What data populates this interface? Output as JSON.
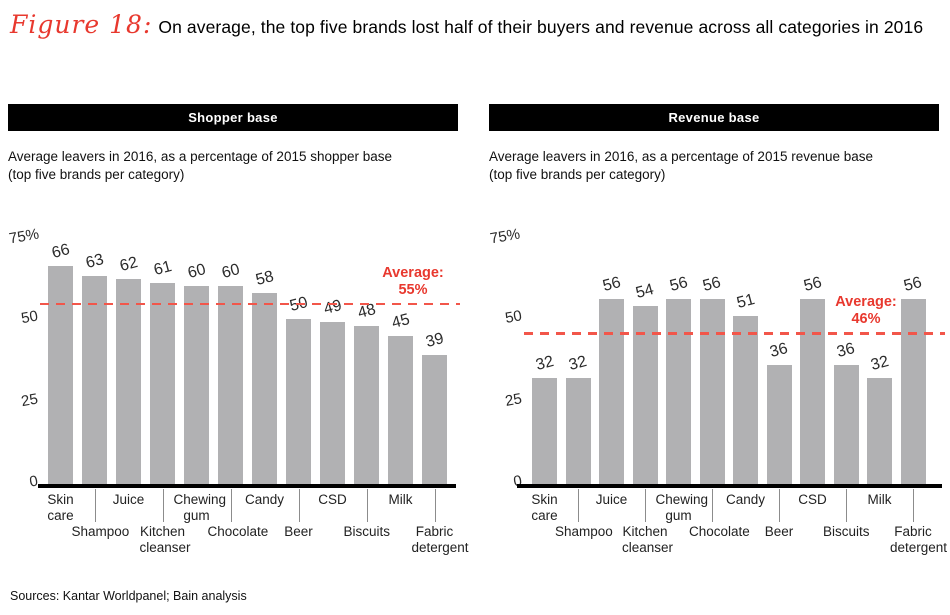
{
  "title": {
    "figure_label": "Figure 18:",
    "text": "On average, the top five brands lost half of their buyers and revenue across all categories in 2016"
  },
  "sources": "Sources: Kantar Worldpanel; Bain analysis",
  "colors": {
    "red": "#e8382e",
    "dash": "#f2564a",
    "bar": "#b1b1b3",
    "axis": "#000000"
  },
  "chart_data": [
    {
      "type": "bar",
      "panel_title": "Shopper base",
      "subtitle_line1": "Average leavers in 2016, as a percentage of 2015 shopper base",
      "subtitle_line2": "(top five brands per category)",
      "categories": [
        "Skin care",
        "Shampoo",
        "Juice",
        "Kitchen cleanser",
        "Chewing gum",
        "Chocolate",
        "Candy",
        "Beer",
        "CSD",
        "Biscuits",
        "Milk",
        "Fabric detergent"
      ],
      "values": [
        66,
        63,
        62,
        61,
        60,
        60,
        58,
        50,
        49,
        48,
        45,
        39
      ],
      "average": 55,
      "average_label": [
        "Average:",
        "55%"
      ],
      "ylabel": "",
      "xlabel": "",
      "ylim": [
        0,
        75
      ],
      "ytick_values": [
        75,
        50,
        25,
        0
      ],
      "ytick_labels": [
        "75%",
        "50",
        "25",
        "0"
      ],
      "grid": false,
      "legend": null
    },
    {
      "type": "bar",
      "panel_title": "Revenue base",
      "subtitle_line1": "Average leavers in 2016, as a percentage of 2015 revenue base",
      "subtitle_line2": "(top five brands per category)",
      "categories": [
        "Skin care",
        "Shampoo",
        "Juice",
        "Kitchen cleanser",
        "Chewing gum",
        "Chocolate",
        "Candy",
        "Beer",
        "CSD",
        "Biscuits",
        "Milk",
        "Fabric detergent"
      ],
      "values": [
        32,
        32,
        56,
        54,
        56,
        56,
        51,
        36,
        56,
        36,
        32,
        56
      ],
      "average": 46,
      "average_label": [
        "Average:",
        "46%"
      ],
      "ylabel": "",
      "xlabel": "",
      "ylim": [
        0,
        75
      ],
      "ytick_values": [
        75,
        50,
        25,
        0
      ],
      "ytick_labels": [
        "75%",
        "50",
        "25",
        "0"
      ],
      "grid": false,
      "legend": null
    }
  ]
}
